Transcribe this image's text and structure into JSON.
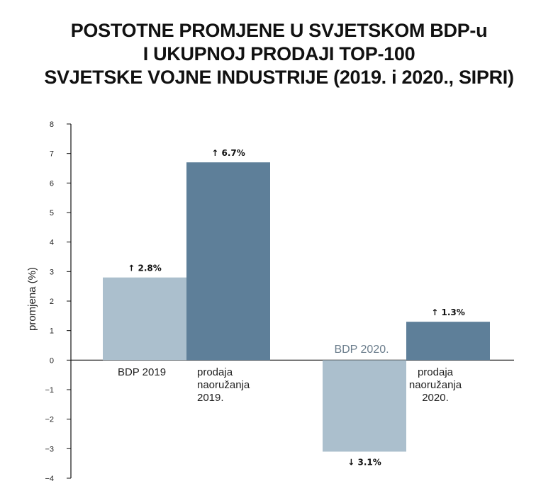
{
  "chart_data": {
    "type": "bar",
    "title_lines": [
      "POSTOTNE PROMJENE U SVJETSKOM BDP-u",
      "I UKUPNOJ PRODAJI TOP-100",
      "SVJETSKE VOJNE INDUSTRIJE (2019. i 2020., SIPRI)"
    ],
    "ylabel": "promjena (%)",
    "ylim": [
      -4,
      8
    ],
    "yticks": [
      "8",
      "7",
      "6",
      "5",
      "4",
      "3",
      "2",
      "1",
      "0",
      "−1",
      "−2",
      "−3",
      "−4"
    ],
    "grid": false,
    "bars": [
      {
        "category": "BDP 2019",
        "label_lines": [
          "BDP 2019"
        ],
        "value": 2.8,
        "data_label": "↑ 2.8%",
        "color": "#abbfcd"
      },
      {
        "category": "prodaja naoružanja 2019.",
        "label_lines": [
          "prodaja",
          "naoružanja",
          "2019."
        ],
        "value": 6.7,
        "data_label": "↑ 6.7%",
        "color": "#5e7f99"
      },
      {
        "category": "BDP 2020.",
        "label_lines": [
          "BDP 2020."
        ],
        "value": -3.1,
        "data_label": "↓ 3.1%",
        "color": "#abbfcd"
      },
      {
        "category": "prodaja naoružanja 2020.",
        "label_lines": [
          "prodaja",
          "naoružanja",
          "2020."
        ],
        "value": 1.3,
        "data_label": "↑ 1.3%",
        "color": "#5e7f99"
      }
    ]
  }
}
